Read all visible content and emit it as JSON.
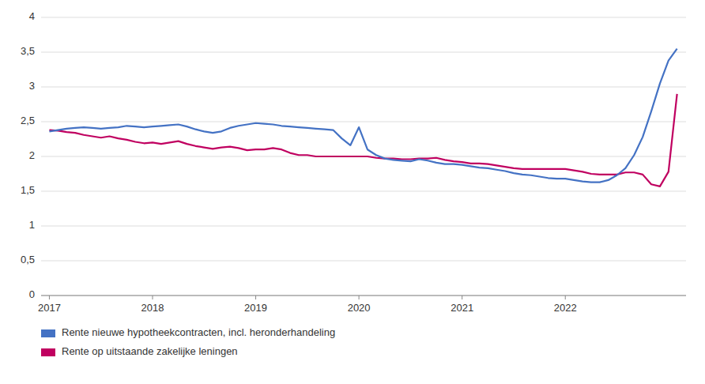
{
  "chart_data": {
    "type": "line",
    "x": [
      2017.0,
      2017.083,
      2017.167,
      2017.25,
      2017.333,
      2017.417,
      2017.5,
      2017.583,
      2017.667,
      2017.75,
      2017.833,
      2017.917,
      2018.0,
      2018.083,
      2018.167,
      2018.25,
      2018.333,
      2018.417,
      2018.5,
      2018.583,
      2018.667,
      2018.75,
      2018.833,
      2018.917,
      2019.0,
      2019.083,
      2019.167,
      2019.25,
      2019.333,
      2019.417,
      2019.5,
      2019.583,
      2019.667,
      2019.75,
      2019.833,
      2019.917,
      2020.0,
      2020.083,
      2020.167,
      2020.25,
      2020.333,
      2020.417,
      2020.5,
      2020.583,
      2020.667,
      2020.75,
      2020.833,
      2020.917,
      2021.0,
      2021.083,
      2021.167,
      2021.25,
      2021.333,
      2021.417,
      2021.5,
      2021.583,
      2021.667,
      2021.75,
      2021.833,
      2021.917,
      2022.0,
      2022.083,
      2022.167,
      2022.25,
      2022.333,
      2022.417,
      2022.5,
      2022.583,
      2022.667,
      2022.75,
      2022.833,
      2022.917,
      2023.0,
      2023.083
    ],
    "series": [
      {
        "name": "Rente nieuwe hypotheekcontracten, incl. heronderhandeling",
        "color": "#4472C4",
        "values": [
          2.36,
          2.38,
          2.4,
          2.41,
          2.42,
          2.41,
          2.4,
          2.41,
          2.42,
          2.44,
          2.43,
          2.42,
          2.43,
          2.44,
          2.45,
          2.46,
          2.43,
          2.39,
          2.36,
          2.34,
          2.36,
          2.41,
          2.44,
          2.46,
          2.48,
          2.47,
          2.46,
          2.44,
          2.43,
          2.42,
          2.41,
          2.4,
          2.39,
          2.38,
          2.26,
          2.16,
          2.42,
          2.1,
          2.02,
          1.97,
          1.95,
          1.94,
          1.93,
          1.96,
          1.94,
          1.91,
          1.89,
          1.89,
          1.88,
          1.86,
          1.84,
          1.83,
          1.81,
          1.79,
          1.76,
          1.74,
          1.73,
          1.71,
          1.69,
          1.68,
          1.68,
          1.66,
          1.64,
          1.63,
          1.63,
          1.66,
          1.73,
          1.83,
          2.02,
          2.28,
          2.65,
          3.05,
          3.38,
          3.55
        ]
      },
      {
        "name": "Rente op uitstaande zakelijke leningen",
        "color": "#C00060",
        "values": [
          2.38,
          2.37,
          2.35,
          2.34,
          2.31,
          2.29,
          2.27,
          2.29,
          2.26,
          2.24,
          2.21,
          2.19,
          2.2,
          2.18,
          2.2,
          2.22,
          2.18,
          2.15,
          2.13,
          2.11,
          2.13,
          2.14,
          2.12,
          2.09,
          2.1,
          2.1,
          2.12,
          2.1,
          2.05,
          2.02,
          2.02,
          2.0,
          2.0,
          2.0,
          2.0,
          2.0,
          2.0,
          2.0,
          1.98,
          1.97,
          1.97,
          1.96,
          1.96,
          1.97,
          1.97,
          1.98,
          1.95,
          1.93,
          1.92,
          1.9,
          1.9,
          1.89,
          1.87,
          1.85,
          1.83,
          1.82,
          1.82,
          1.82,
          1.82,
          1.82,
          1.82,
          1.8,
          1.78,
          1.75,
          1.74,
          1.74,
          1.74,
          1.77,
          1.77,
          1.74,
          1.6,
          1.57,
          1.78,
          2.9
        ]
      }
    ],
    "xlim": [
      2016.92,
      2023.17
    ],
    "xticks": [
      2017,
      2018,
      2019,
      2020,
      2021,
      2022
    ],
    "ylim": [
      0,
      4
    ],
    "yticks": [
      0,
      {
        "value": 0.5,
        "label": "0,5"
      },
      1,
      {
        "value": 1.5,
        "label": "1,5"
      },
      2,
      {
        "value": 2.5,
        "label": "2,5"
      },
      3,
      {
        "value": 3.5,
        "label": "3,5"
      },
      4
    ],
    "grid": true,
    "legend": "bottom"
  }
}
